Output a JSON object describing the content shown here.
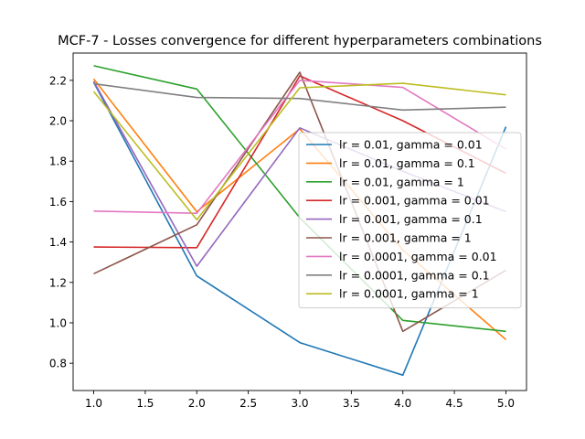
{
  "chart_data": {
    "type": "line",
    "title": "MCF-7 - Losses convergence for different hyperparameters combinations",
    "xlabel": "",
    "ylabel": "",
    "x": [
      1,
      2,
      3,
      4,
      5
    ],
    "xlim": [
      0.8,
      5.2
    ],
    "ylim": [
      0.665,
      2.335
    ],
    "x_ticks": [
      1.0,
      1.5,
      2.0,
      2.5,
      3.0,
      3.5,
      4.0,
      4.5,
      5.0
    ],
    "x_tick_labels": [
      "1.0",
      "1.5",
      "2.0",
      "2.5",
      "3.0",
      "3.5",
      "4.0",
      "4.5",
      "5.0"
    ],
    "y_ticks": [
      0.8,
      1.0,
      1.2,
      1.4,
      1.6,
      1.8,
      2.0,
      2.2
    ],
    "y_tick_labels": [
      "0.8",
      "1.0",
      "1.2",
      "1.4",
      "1.6",
      "1.8",
      "2.0",
      "2.2"
    ],
    "grid": false,
    "legend_position": "center-right",
    "series": [
      {
        "name": "lr = 0.01, gamma = 0.01",
        "color": "#1f77b4",
        "values": [
          2.19,
          1.232,
          0.902,
          0.741,
          1.97
        ]
      },
      {
        "name": "lr = 0.01, gamma = 0.1",
        "color": "#ff7f0e",
        "values": [
          2.207,
          1.55,
          1.96,
          1.36,
          0.917
        ]
      },
      {
        "name": "lr = 0.01, gamma = 1",
        "color": "#2ca02c",
        "values": [
          2.272,
          2.157,
          1.52,
          1.012,
          0.958
        ]
      },
      {
        "name": "lr = 0.001, gamma = 0.01",
        "color": "#d62728",
        "values": [
          1.375,
          1.372,
          2.222,
          2.0,
          1.74
        ]
      },
      {
        "name": "lr = 0.001, gamma = 0.1",
        "color": "#9467bd",
        "values": [
          2.195,
          1.28,
          1.965,
          1.75,
          1.55
        ]
      },
      {
        "name": "lr = 0.001, gamma = 1",
        "color": "#8c564b",
        "values": [
          1.243,
          1.485,
          2.24,
          0.958,
          1.26
        ]
      },
      {
        "name": "lr = 0.0001, gamma = 0.01",
        "color": "#e377c2",
        "values": [
          1.553,
          1.542,
          2.2,
          2.165,
          1.86
        ]
      },
      {
        "name": "lr = 0.0001, gamma = 0.1",
        "color": "#7f7f7f",
        "values": [
          2.183,
          2.115,
          2.11,
          2.053,
          2.067
        ]
      },
      {
        "name": "lr = 0.0001, gamma = 1",
        "color": "#bcbd22",
        "values": [
          2.145,
          1.51,
          2.163,
          2.185,
          2.128
        ]
      }
    ]
  }
}
